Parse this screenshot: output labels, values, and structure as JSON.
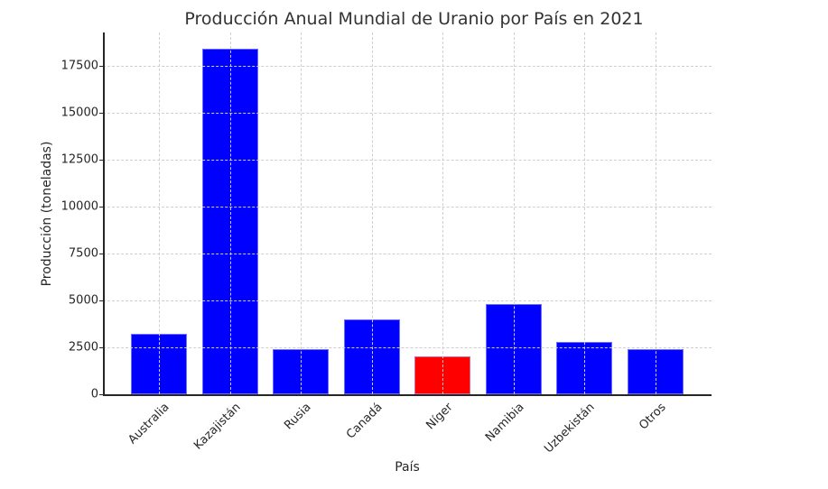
{
  "chart_data": {
    "type": "bar",
    "title": "Producción Anual Mundial de Uranio por País en 2021",
    "xlabel": "País",
    "ylabel": "Producción (toneladas)",
    "categories": [
      "Australia",
      "Kazajistán",
      "Rusia",
      "Canadá",
      "Níger",
      "Namibia",
      "Uzbekistán",
      "Otros"
    ],
    "values": [
      3200,
      18400,
      2400,
      4000,
      2000,
      4800,
      2800,
      2400
    ],
    "colors": [
      "#0000ff",
      "#0000ff",
      "#0000ff",
      "#0000ff",
      "#ff0000",
      "#0000ff",
      "#0000ff",
      "#0000ff"
    ],
    "highlight": "Níger",
    "ylim": [
      0,
      19300
    ],
    "yticks": [
      0,
      2500,
      5000,
      7500,
      10000,
      12500,
      15000,
      17500
    ],
    "grid": true,
    "legend": null
  }
}
